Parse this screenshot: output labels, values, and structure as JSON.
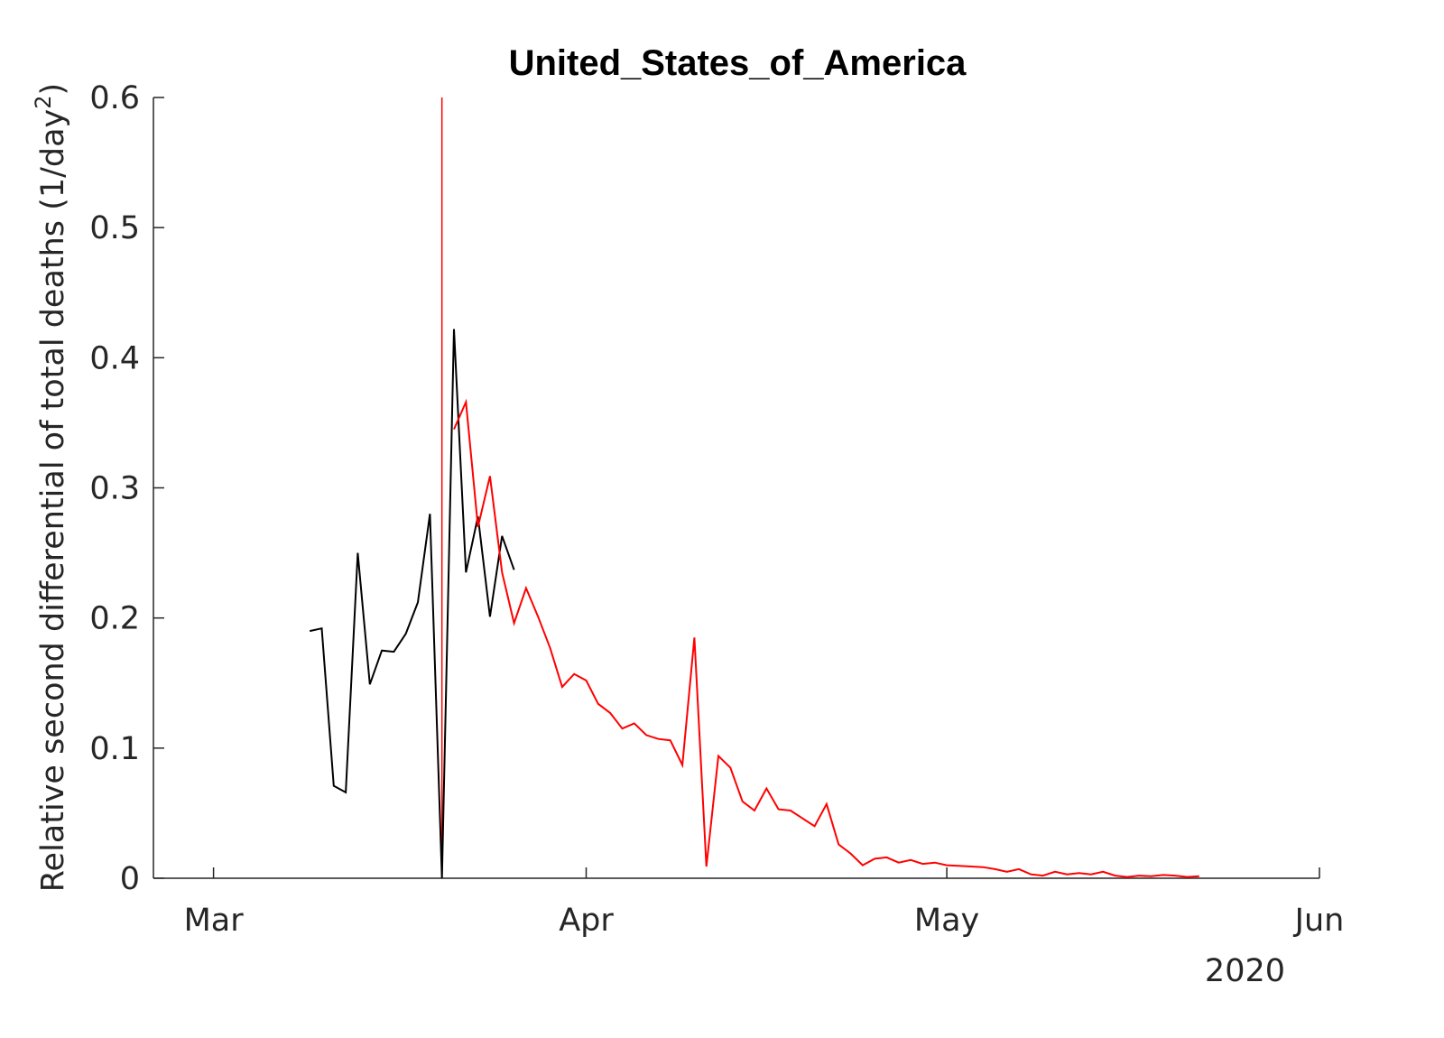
{
  "chart_data": {
    "type": "line",
    "title": "United_States_of_America",
    "ylabel": "Relative second differential of total deaths (1/day",
    "ylabel_superscript": "2",
    "ylabel_close": ")",
    "xlim": [
      "2020-02-25",
      "2020-06-01"
    ],
    "ylim": [
      0,
      0.6
    ],
    "grid": false,
    "x_ticks": [
      {
        "date": "2020-03-01",
        "label": "Mar"
      },
      {
        "date": "2020-04-01",
        "label": "Apr"
      },
      {
        "date": "2020-05-01",
        "label": "May"
      },
      {
        "date": "2020-06-01",
        "label": "Jun"
      }
    ],
    "x_secondary_label": "2020",
    "y_ticks": [
      {
        "value": 0,
        "label": "0"
      },
      {
        "value": 0.1,
        "label": "0.1"
      },
      {
        "value": 0.2,
        "label": "0.2"
      },
      {
        "value": 0.3,
        "label": "0.3"
      },
      {
        "value": 0.4,
        "label": "0.4"
      },
      {
        "value": 0.5,
        "label": "0.5"
      },
      {
        "value": 0.6,
        "label": "0.6"
      }
    ],
    "vertical_line": {
      "date": "2020-03-20",
      "color": "#ff0000"
    },
    "series": [
      {
        "color": "#000000",
        "points": [
          [
            "2020-03-09",
            0.19
          ],
          [
            "2020-03-10",
            0.192
          ],
          [
            "2020-03-11",
            0.071
          ],
          [
            "2020-03-12",
            0.066
          ],
          [
            "2020-03-13",
            0.25
          ],
          [
            "2020-03-14",
            0.149
          ],
          [
            "2020-03-15",
            0.175
          ],
          [
            "2020-03-16",
            0.174
          ],
          [
            "2020-03-17",
            0.188
          ],
          [
            "2020-03-18",
            0.212
          ],
          [
            "2020-03-19",
            0.28
          ],
          [
            "2020-03-20",
            0.0
          ],
          [
            "2020-03-21",
            0.422
          ],
          [
            "2020-03-22",
            0.235
          ],
          [
            "2020-03-23",
            0.278
          ],
          [
            "2020-03-24",
            0.201
          ],
          [
            "2020-03-25",
            0.263
          ],
          [
            "2020-03-26",
            0.237
          ]
        ]
      },
      {
        "color": "#ff0000",
        "points": [
          [
            "2020-03-21",
            0.345
          ],
          [
            "2020-03-22",
            0.366
          ],
          [
            "2020-03-23",
            0.27
          ],
          [
            "2020-03-24",
            0.309
          ],
          [
            "2020-03-25",
            0.235
          ],
          [
            "2020-03-26",
            0.196
          ],
          [
            "2020-03-27",
            0.223
          ],
          [
            "2020-03-28",
            0.201
          ],
          [
            "2020-03-29",
            0.177
          ],
          [
            "2020-03-30",
            0.147
          ],
          [
            "2020-03-31",
            0.157
          ],
          [
            "2020-04-01",
            0.152
          ],
          [
            "2020-04-02",
            0.134
          ],
          [
            "2020-04-03",
            0.127
          ],
          [
            "2020-04-04",
            0.115
          ],
          [
            "2020-04-05",
            0.119
          ],
          [
            "2020-04-06",
            0.11
          ],
          [
            "2020-04-07",
            0.107
          ],
          [
            "2020-04-08",
            0.106
          ],
          [
            "2020-04-09",
            0.087
          ],
          [
            "2020-04-10",
            0.185
          ],
          [
            "2020-04-11",
            0.009
          ],
          [
            "2020-04-12",
            0.094
          ],
          [
            "2020-04-13",
            0.085
          ],
          [
            "2020-04-14",
            0.059
          ],
          [
            "2020-04-15",
            0.052
          ],
          [
            "2020-04-16",
            0.069
          ],
          [
            "2020-04-17",
            0.053
          ],
          [
            "2020-04-18",
            0.052
          ],
          [
            "2020-04-19",
            0.046
          ],
          [
            "2020-04-20",
            0.04
          ],
          [
            "2020-04-21",
            0.057
          ],
          [
            "2020-04-22",
            0.026
          ],
          [
            "2020-04-23",
            0.019
          ],
          [
            "2020-04-24",
            0.01
          ],
          [
            "2020-04-25",
            0.015
          ],
          [
            "2020-04-26",
            0.016
          ],
          [
            "2020-04-27",
            0.012
          ],
          [
            "2020-04-28",
            0.014
          ],
          [
            "2020-04-29",
            0.011
          ],
          [
            "2020-04-30",
            0.012
          ],
          [
            "2020-05-01",
            0.01
          ],
          [
            "2020-05-02",
            0.0095
          ],
          [
            "2020-05-03",
            0.009
          ],
          [
            "2020-05-04",
            0.0085
          ],
          [
            "2020-05-05",
            0.007
          ],
          [
            "2020-05-06",
            0.005
          ],
          [
            "2020-05-07",
            0.007
          ],
          [
            "2020-05-08",
            0.003
          ],
          [
            "2020-05-09",
            0.002
          ],
          [
            "2020-05-10",
            0.005
          ],
          [
            "2020-05-11",
            0.003
          ],
          [
            "2020-05-12",
            0.004
          ],
          [
            "2020-05-13",
            0.003
          ],
          [
            "2020-05-14",
            0.005
          ],
          [
            "2020-05-15",
            0.002
          ],
          [
            "2020-05-16",
            0.001
          ],
          [
            "2020-05-17",
            0.002
          ],
          [
            "2020-05-18",
            0.0015
          ],
          [
            "2020-05-19",
            0.0025
          ],
          [
            "2020-05-20",
            0.002
          ],
          [
            "2020-05-21",
            0.001
          ],
          [
            "2020-05-22",
            0.0015
          ]
        ]
      }
    ]
  }
}
